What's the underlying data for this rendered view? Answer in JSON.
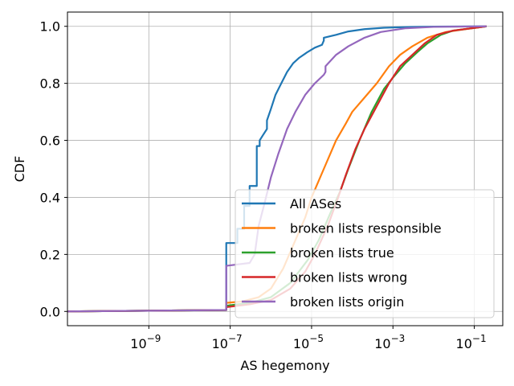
{
  "chart_data": {
    "type": "line",
    "xlabel": "AS hegemony",
    "ylabel": "CDF",
    "xscale": "log",
    "xlim": [
      1e-11,
      0.5
    ],
    "ylim": [
      -0.05,
      1.05
    ],
    "x_ticks": [
      1e-09,
      1e-07,
      1e-05,
      0.001,
      0.1
    ],
    "x_tick_labels": [
      {
        "base": "10",
        "exp": "−9"
      },
      {
        "base": "10",
        "exp": "−7"
      },
      {
        "base": "10",
        "exp": "−5"
      },
      {
        "base": "10",
        "exp": "−3"
      },
      {
        "base": "10",
        "exp": "−1"
      }
    ],
    "y_ticks": [
      0.0,
      0.2,
      0.4,
      0.6,
      0.8,
      1.0
    ],
    "y_tick_labels": [
      "0.0",
      "0.2",
      "0.4",
      "0.6",
      "0.8",
      "1.0"
    ],
    "grid": true,
    "legend_position": "lower-right",
    "series": [
      {
        "name": "All ASes",
        "color": "#1f77b4",
        "points": [
          [
            1e-11,
            0.0
          ],
          [
            8e-08,
            0.005
          ],
          [
            8e-08,
            0.24
          ],
          [
            1.5e-07,
            0.24
          ],
          [
            1.5e-07,
            0.29
          ],
          [
            2.2e-07,
            0.29
          ],
          [
            2.2e-07,
            0.37
          ],
          [
            3e-07,
            0.37
          ],
          [
            3e-07,
            0.44
          ],
          [
            4.5e-07,
            0.44
          ],
          [
            4.5e-07,
            0.58
          ],
          [
            5.3e-07,
            0.58
          ],
          [
            5.3e-07,
            0.6
          ],
          [
            6.5e-07,
            0.62
          ],
          [
            8e-07,
            0.64
          ],
          [
            8e-07,
            0.67
          ],
          [
            1e-06,
            0.71
          ],
          [
            1.3e-06,
            0.76
          ],
          [
            1.8e-06,
            0.8
          ],
          [
            2.5e-06,
            0.84
          ],
          [
            3.5e-06,
            0.87
          ],
          [
            5e-06,
            0.89
          ],
          [
            8e-06,
            0.91
          ],
          [
            1.2e-05,
            0.925
          ],
          [
            1.8e-05,
            0.935
          ],
          [
            2e-05,
            0.95
          ],
          [
            2e-05,
            0.96
          ],
          [
            4e-05,
            0.97
          ],
          [
            8e-05,
            0.982
          ],
          [
            0.0002,
            0.99
          ],
          [
            0.0006,
            0.995
          ],
          [
            0.003,
            0.998
          ],
          [
            0.01,
            0.999
          ],
          [
            0.2,
            1.0
          ]
        ]
      },
      {
        "name": "broken lists responsible",
        "color": "#ff7f0e",
        "points": [
          [
            1e-11,
            0.0
          ],
          [
            8e-08,
            0.005
          ],
          [
            8e-08,
            0.03
          ],
          [
            2e-07,
            0.035
          ],
          [
            5e-07,
            0.05
          ],
          [
            1e-06,
            0.08
          ],
          [
            2e-06,
            0.15
          ],
          [
            4e-06,
            0.25
          ],
          [
            7e-06,
            0.33
          ],
          [
            1e-05,
            0.4
          ],
          [
            2e-05,
            0.5
          ],
          [
            4e-05,
            0.6
          ],
          [
            7e-05,
            0.66
          ],
          [
            0.0001,
            0.7
          ],
          [
            0.0002,
            0.75
          ],
          [
            0.0004,
            0.8
          ],
          [
            0.0008,
            0.86
          ],
          [
            0.0015,
            0.9
          ],
          [
            0.003,
            0.93
          ],
          [
            0.007,
            0.96
          ],
          [
            0.02,
            0.98
          ],
          [
            0.06,
            0.99
          ],
          [
            0.2,
            1.0
          ]
        ]
      },
      {
        "name": "broken lists true",
        "color": "#2ca02c",
        "points": [
          [
            1e-11,
            0.0
          ],
          [
            8e-08,
            0.005
          ],
          [
            8e-08,
            0.02
          ],
          [
            3e-07,
            0.03
          ],
          [
            1e-06,
            0.05
          ],
          [
            3e-06,
            0.1
          ],
          [
            8e-06,
            0.18
          ],
          [
            1.5e-05,
            0.25
          ],
          [
            3e-05,
            0.35
          ],
          [
            5e-05,
            0.42
          ],
          [
            8e-05,
            0.5
          ],
          [
            0.00015,
            0.6
          ],
          [
            0.0003,
            0.7
          ],
          [
            0.0006,
            0.78
          ],
          [
            0.001,
            0.82
          ],
          [
            0.002,
            0.87
          ],
          [
            0.004,
            0.91
          ],
          [
            0.007,
            0.94
          ],
          [
            0.015,
            0.97
          ],
          [
            0.03,
            0.985
          ],
          [
            0.2,
            1.0
          ]
        ]
      },
      {
        "name": "broken lists wrong",
        "color": "#d62728",
        "points": [
          [
            1e-11,
            0.0
          ],
          [
            8e-08,
            0.005
          ],
          [
            8e-08,
            0.015
          ],
          [
            3e-07,
            0.025
          ],
          [
            1e-06,
            0.04
          ],
          [
            3e-06,
            0.08
          ],
          [
            7e-06,
            0.14
          ],
          [
            1.2e-05,
            0.2
          ],
          [
            2.5e-05,
            0.3
          ],
          [
            4.5e-05,
            0.4
          ],
          [
            7e-05,
            0.48
          ],
          [
            0.00012,
            0.57
          ],
          [
            0.0002,
            0.64
          ],
          [
            0.0004,
            0.72
          ],
          [
            0.0008,
            0.8
          ],
          [
            0.0015,
            0.86
          ],
          [
            0.003,
            0.9
          ],
          [
            0.006,
            0.94
          ],
          [
            0.012,
            0.97
          ],
          [
            0.03,
            0.985
          ],
          [
            0.2,
            1.0
          ]
        ]
      },
      {
        "name": "broken lists origin",
        "color": "#9467bd",
        "points": [
          [
            1e-11,
            0.0
          ],
          [
            8e-08,
            0.005
          ],
          [
            8e-08,
            0.16
          ],
          [
            3e-07,
            0.17
          ],
          [
            4e-07,
            0.2
          ],
          [
            5e-07,
            0.3
          ],
          [
            7e-07,
            0.38
          ],
          [
            1e-06,
            0.47
          ],
          [
            1.5e-06,
            0.55
          ],
          [
            2.5e-06,
            0.64
          ],
          [
            4e-06,
            0.7
          ],
          [
            7e-06,
            0.76
          ],
          [
            1.2e-05,
            0.8
          ],
          [
            2e-05,
            0.83
          ],
          [
            2.2e-05,
            0.84
          ],
          [
            2.2e-05,
            0.86
          ],
          [
            4e-05,
            0.9
          ],
          [
            8e-05,
            0.93
          ],
          [
            0.0002,
            0.96
          ],
          [
            0.0005,
            0.98
          ],
          [
            0.002,
            0.993
          ],
          [
            0.01,
            0.998
          ],
          [
            0.2,
            1.0
          ]
        ]
      }
    ]
  }
}
